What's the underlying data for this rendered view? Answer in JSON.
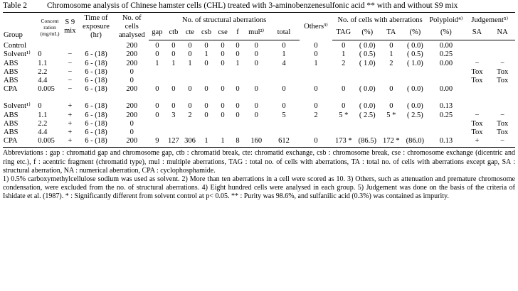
{
  "header": {
    "label": "Table 2",
    "title": "Chromosome analysis of Chinese hamster cells (CHL) treated with 3-aminobenzenesulfonic acid ** with and without S9 mix"
  },
  "table": {
    "headers": {
      "group": "Group",
      "conc": "Concent ration (mg/mL)",
      "s9": "S 9 mix",
      "time": "Time of exposure (hr)",
      "cells": "No. of cells analysed",
      "structural": "No. of structural aberrations",
      "others": "Others³⁾",
      "with_ab": "No. of cells with aberrations",
      "polyploid": "Polyploid⁴⁾",
      "judgement": "Judgement⁵⁾"
    },
    "subheaders": [
      "gap",
      "ctb",
      "cte",
      "csb",
      "cse",
      "f",
      "mul²⁾",
      "total",
      "TAG",
      "(%)",
      "TA",
      "(%)",
      "(%)",
      "SA",
      "NA"
    ],
    "rows": [
      [
        "Control",
        "",
        "",
        "",
        "200",
        "0",
        "0",
        "0",
        "0",
        "0",
        "0",
        "0",
        "0",
        "0",
        "0",
        "( 0.0)",
        "0",
        "( 0.0)",
        "0.00",
        "",
        ""
      ],
      [
        "Solvent¹⁾",
        "0",
        "−",
        "6 - (18)",
        "200",
        "0",
        "0",
        "0",
        "1",
        "0",
        "0",
        "0",
        "1",
        "0",
        "1",
        "( 0.5)",
        "1",
        "( 0.5)",
        "0.25",
        "",
        ""
      ],
      [
        "ABS",
        "1.1",
        "−",
        "6 - (18)",
        "200",
        "1",
        "1",
        "1",
        "0",
        "0",
        "1",
        "0",
        "4",
        "1",
        "2",
        "( 1.0)",
        "2",
        "( 1.0)",
        "0.00",
        "−",
        "−"
      ],
      [
        "ABS",
        "2.2",
        "−",
        "6 - (18)",
        "0",
        "",
        "",
        "",
        "",
        "",
        "",
        "",
        "",
        "",
        "",
        "",
        "",
        "",
        "",
        "Tox",
        "Tox"
      ],
      [
        "ABS",
        "4.4",
        "−",
        "6 - (18)",
        "0",
        "",
        "",
        "",
        "",
        "",
        "",
        "",
        "",
        "",
        "",
        "",
        "",
        "",
        "",
        "Tox",
        "Tox"
      ],
      [
        "CPA",
        "0.005",
        "−",
        "6 - (18)",
        "200",
        "0",
        "0",
        "0",
        "0",
        "0",
        "0",
        "0",
        "0",
        "0",
        "0",
        "( 0.0)",
        "0",
        "( 0.0)",
        "0.00",
        "",
        ""
      ],
      [
        "Solvent¹⁾",
        "0",
        "+",
        "6 - (18)",
        "200",
        "0",
        "0",
        "0",
        "0",
        "0",
        "0",
        "0",
        "0",
        "0",
        "0",
        "( 0.0)",
        "0",
        "( 0.0)",
        "0.13",
        "",
        ""
      ],
      [
        "ABS",
        "1.1",
        "+",
        "6 - (18)",
        "200",
        "0",
        "3",
        "2",
        "0",
        "0",
        "0",
        "0",
        "5",
        "2",
        "5 *",
        "( 2.5)",
        "5 *",
        "( 2.5)",
        "0.25",
        "−",
        "−"
      ],
      [
        "ABS",
        "2.2",
        "+",
        "6 - (18)",
        "0",
        "",
        "",
        "",
        "",
        "",
        "",
        "",
        "",
        "",
        "",
        "",
        "",
        "",
        "",
        "Tox",
        "Tox"
      ],
      [
        "ABS",
        "4.4",
        "+",
        "6 - (18)",
        "0",
        "",
        "",
        "",
        "",
        "",
        "",
        "",
        "",
        "",
        "",
        "",
        "",
        "",
        "",
        "Tox",
        "Tox"
      ],
      [
        "CPA",
        "0.005",
        "+",
        "6 - (18)",
        "200",
        "9",
        "127",
        "306",
        "1",
        "1",
        "8",
        "160",
        "612",
        "0",
        "173 *",
        "(86.5)",
        "172 *",
        "(86.0)",
        "0.13",
        "+",
        "−"
      ]
    ]
  },
  "footnotes": [
    "Abbreviations : gap : chromatid gap and chromosome gap, ctb : chromatid break, cte: chromatid exchange, csb : chromosome break, cse : chromosome exchange (dicentric and ring etc.), f : acentric fragment (chromatid type), mul : multiple aberrations, TAG : total no. of cells with aberrations, TA : total no. of cells with aberrations except gap, SA : structural aberration, NA : numerical aberration, CPA : cyclophosphamide.",
    "1) 0.5% carboxymethylcellulose sodium was used as solvent. 2) More than ten aberrations in a cell were scored as 10. 3) Others, such as attenuation and premature chromosome condensation, were excluded from the no. of structural aberrations. 4) Eight hundred cells were analysed in each group. 5) Judgement was done on the basis of the criteria of Ishidate et al. (1987). * : Significantly different from solvent control at p< 0.05. ** : Purity was 98.6%, and sulfanilic acid (0.3%) was contained as impurity."
  ]
}
